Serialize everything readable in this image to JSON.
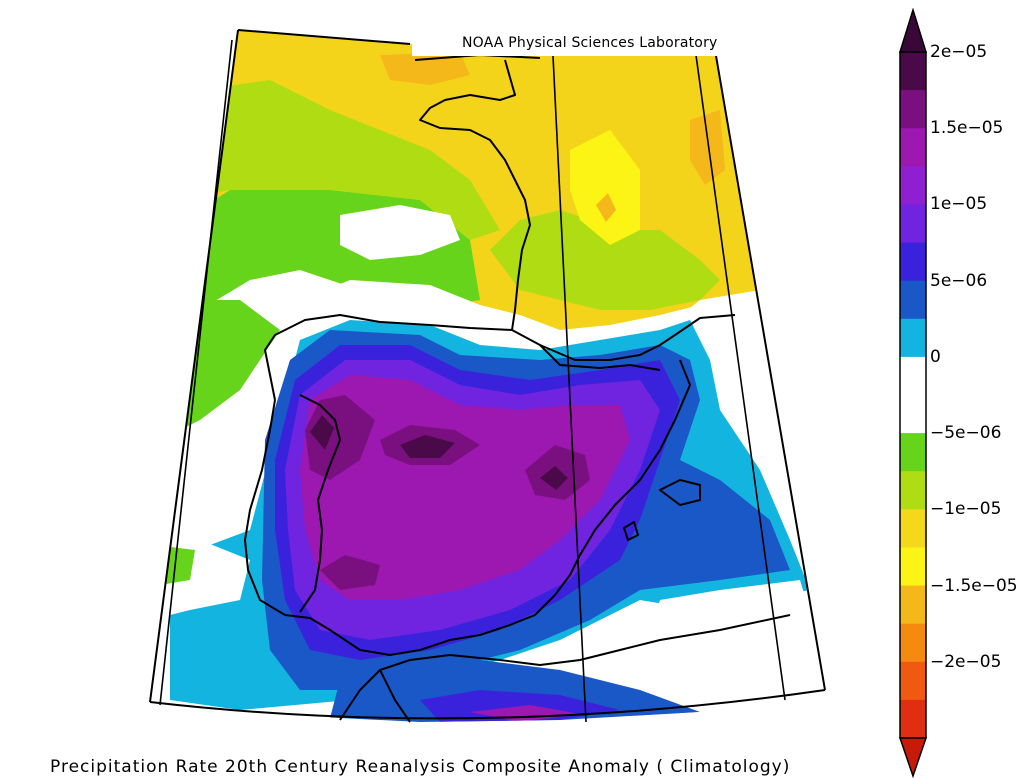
{
  "credit": "NOAA Physical Sciences Laboratory",
  "caption": "Precipitation Rate 20th Century Reanalysis Composite Anomaly ( Climatology)",
  "colorbar": {
    "labels": [
      "2e−05",
      "1.5e−05",
      "1e−05",
      "5e−06",
      "0",
      "−5e−06",
      "−1e−05",
      "−1.5e−05",
      "−2e−05"
    ],
    "colors_top_to_bottom": [
      "#4a0a4a",
      "#7a1080",
      "#9c18b0",
      "#8f1fd0",
      "#7024e0",
      "#3a22dc",
      "#1a58c8",
      "#14b4e0",
      "#ffffff",
      "#ffffff",
      "#66d41a",
      "#b0dc14",
      "#f4d81a",
      "#fcf414",
      "#f4b81a",
      "#f48a10",
      "#f05a10",
      "#e02e10"
    ],
    "top_arrow_color": "#3a0838",
    "bottom_arrow_color": "#c81a08"
  },
  "map": {
    "fill_colors": {
      "yellow": "#f4d41a",
      "light_yellow": "#fcf414",
      "orange": "#f4b81a",
      "yellow_green": "#b0dc14",
      "green": "#66d41a",
      "white": "#ffffff",
      "cyan": "#14b4e0",
      "blue": "#1a58c8",
      "indigo": "#3a22dc",
      "violet": "#7024e0",
      "purple": "#9c18b0",
      "magenta": "#7a1080",
      "dark_purple": "#4a0a4a"
    }
  }
}
